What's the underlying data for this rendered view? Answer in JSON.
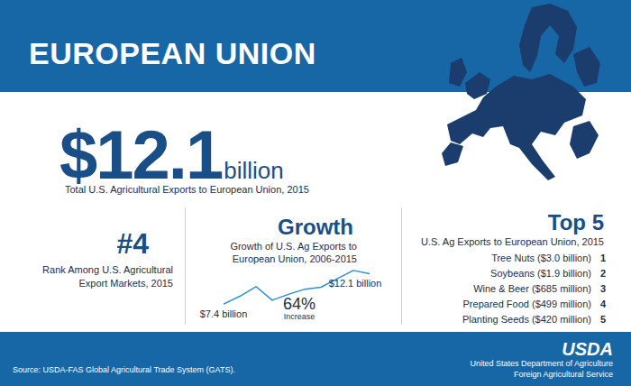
{
  "header": {
    "title": "EUROPEAN UNION"
  },
  "headline": {
    "value": "$12.1",
    "unit": "billion",
    "caption": "Total U.S. Agricultural Exports to European Union, 2015"
  },
  "rank": {
    "value": "#4",
    "caption": [
      "Rank Among U.S. Agricultural",
      "Export Markets, 2015"
    ]
  },
  "growth": {
    "title": "Growth",
    "caption": [
      "Growth of U.S. Ag Exports to",
      "European Union, 2006-2015"
    ],
    "increase": "64%",
    "increase_label": "Increase"
  },
  "chart_data": {
    "type": "line",
    "categories": [
      null,
      null,
      null,
      null,
      null,
      null,
      null,
      null,
      null,
      null
    ],
    "values": [
      7.4,
      8.6,
      10.1,
      8.0,
      8.9,
      9.7,
      10.0,
      11.3,
      12.6,
      12.1
    ],
    "value_labels": [
      "$7.4 billion",
      null,
      null,
      null,
      null,
      null,
      null,
      null,
      null,
      "$12.1 billion"
    ],
    "data_labels": true,
    "color": "#2b8fd3",
    "ylim": [
      7,
      13
    ],
    "tick_labels": false,
    "grid": false
  },
  "top5": {
    "title": "Top 5",
    "caption": "U.S. Ag Exports to European Union, 2015",
    "items": [
      {
        "rank": 1,
        "label": "Tree Nuts ($3.0 billion)"
      },
      {
        "rank": 2,
        "label": "Soybeans ($1.9 billion)"
      },
      {
        "rank": 3,
        "label": "Wine & Beer ($685 million)"
      },
      {
        "rank": 4,
        "label": "Prepared Food ($499 million)"
      },
      {
        "rank": 5,
        "label": "Planting Seeds ($420 million)"
      }
    ]
  },
  "footer": {
    "source": "Source: USDA-FAS Global Agricultural Trade System (GATS).",
    "logo": "USDA",
    "agency": [
      "United States Department of Agriculture",
      "Foreign Agricultural Service"
    ]
  }
}
